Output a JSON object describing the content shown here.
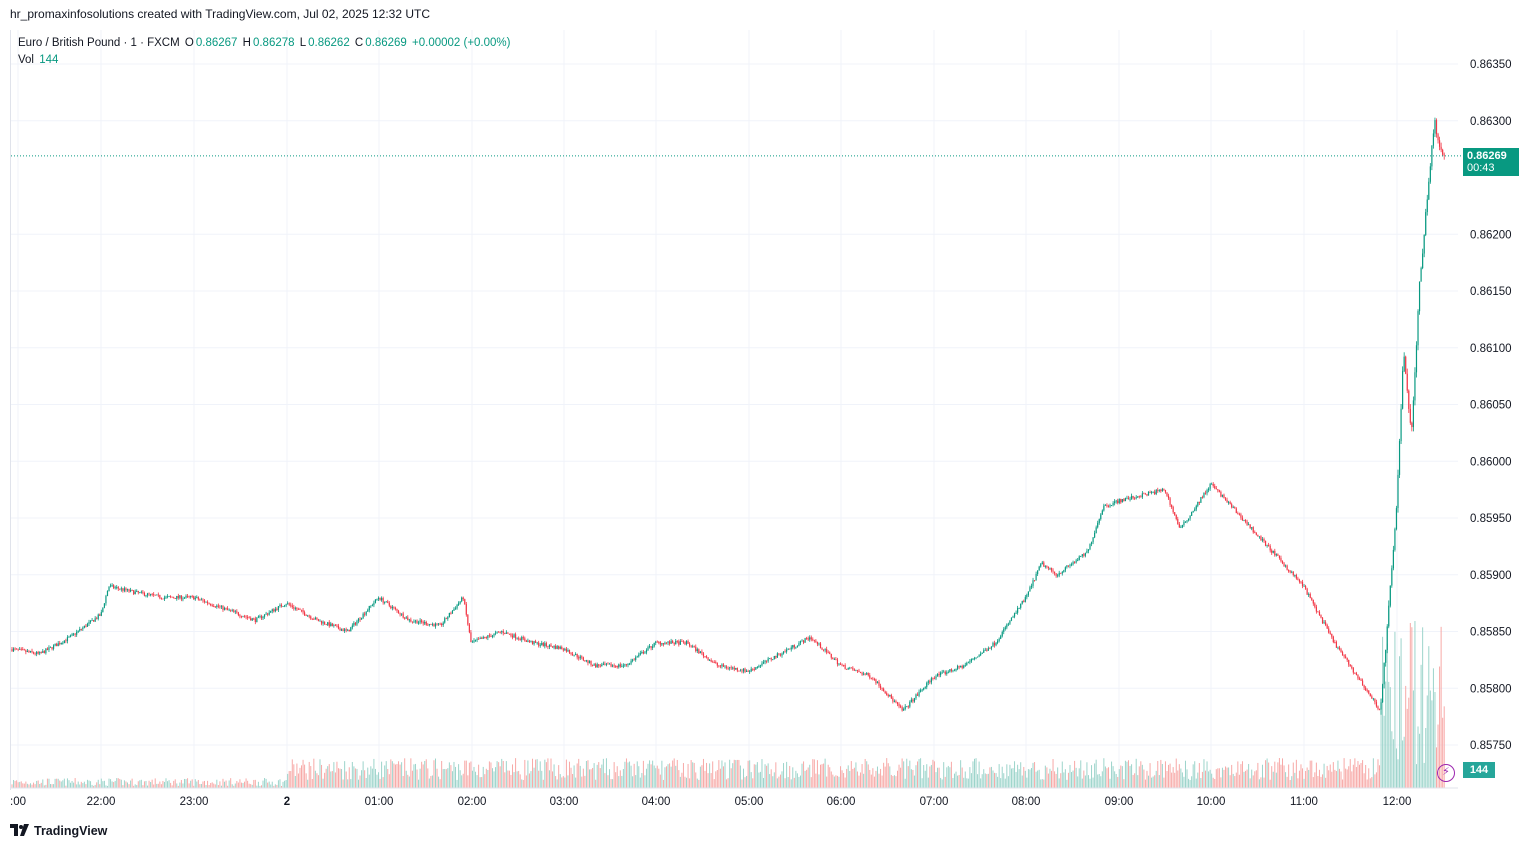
{
  "header": {
    "title": "hr_promaxinfosolutions created with TradingView.com, Jul 02, 2025 12:32 UTC"
  },
  "legend": {
    "symbol": "Euro / British Pound · 1 · FXCM",
    "open_label": "O",
    "open": "0.86267",
    "high_label": "H",
    "high": "0.86278",
    "low_label": "L",
    "low": "0.86262",
    "close_label": "C",
    "close": "0.86269",
    "change": "+0.00002 (+0.00%)",
    "vol_label": "Vol",
    "vol": "144"
  },
  "price_tag": {
    "price": "0.86269",
    "countdown": "00:43"
  },
  "volume_tag": "144",
  "footer": {
    "brand": "TradingView"
  },
  "colors": {
    "up": "#089981",
    "down": "#f23645",
    "grid": "#f0f3fa",
    "axis_text": "#131722"
  },
  "chart_data": {
    "type": "line",
    "title": "Euro / British Pound · 1 · FXCM",
    "xlabel": "",
    "ylabel": "",
    "x_ticks": [
      ":00",
      "22:00",
      "23:00",
      "2",
      "01:00",
      "02:00",
      "03:00",
      "04:00",
      "05:00",
      "06:00",
      "07:00",
      "08:00",
      "09:00",
      "10:00",
      "11:00",
      "12:00"
    ],
    "y_ticks": [
      "0.86350",
      "0.86300",
      "0.86200",
      "0.86150",
      "0.86100",
      "0.86050",
      "0.86000",
      "0.85950",
      "0.85900",
      "0.85850",
      "0.85800",
      "0.85750"
    ],
    "ylim": [
      0.8574,
      0.8636
    ],
    "grid": true,
    "series": [
      {
        "x": [
          "21:00",
          "21:20",
          "21:40",
          "22:00",
          "22:05",
          "22:20",
          "22:40",
          "23:00",
          "23:20",
          "23:40",
          "00:00",
          "00:20",
          "00:40",
          "01:00",
          "01:20",
          "01:40",
          "01:55",
          "02:00",
          "02:20",
          "02:40",
          "03:00",
          "03:20",
          "03:40",
          "04:00",
          "04:20",
          "04:40",
          "05:00",
          "05:20",
          "05:40",
          "06:00",
          "06:20",
          "06:40",
          "07:00",
          "07:20",
          "07:40",
          "08:00",
          "08:10",
          "08:20",
          "08:40",
          "08:50",
          "09:00",
          "09:15",
          "09:30",
          "09:40",
          "09:50",
          "10:00",
          "10:20",
          "10:40",
          "11:00",
          "11:20",
          "11:40",
          "11:50",
          "12:00",
          "12:05",
          "12:10",
          "12:15",
          "12:20",
          "12:25",
          "12:30"
        ],
        "values": [
          0.85835,
          0.8583,
          0.85845,
          0.85865,
          0.8589,
          0.85885,
          0.8588,
          0.8588,
          0.8587,
          0.8586,
          0.85875,
          0.8586,
          0.8585,
          0.8588,
          0.8586,
          0.85855,
          0.8588,
          0.8584,
          0.8585,
          0.8584,
          0.85835,
          0.8582,
          0.8582,
          0.8584,
          0.8584,
          0.8582,
          0.85815,
          0.8583,
          0.85845,
          0.8582,
          0.8581,
          0.8578,
          0.8581,
          0.8582,
          0.8584,
          0.8588,
          0.8591,
          0.859,
          0.8592,
          0.8596,
          0.85965,
          0.8597,
          0.85975,
          0.8594,
          0.8596,
          0.8598,
          0.8595,
          0.8592,
          0.8589,
          0.8584,
          0.858,
          0.8578,
          0.8595,
          0.861,
          0.8602,
          0.8615,
          0.8623,
          0.863,
          0.86269
        ]
      }
    ],
    "volume": {
      "last": 144
    }
  }
}
